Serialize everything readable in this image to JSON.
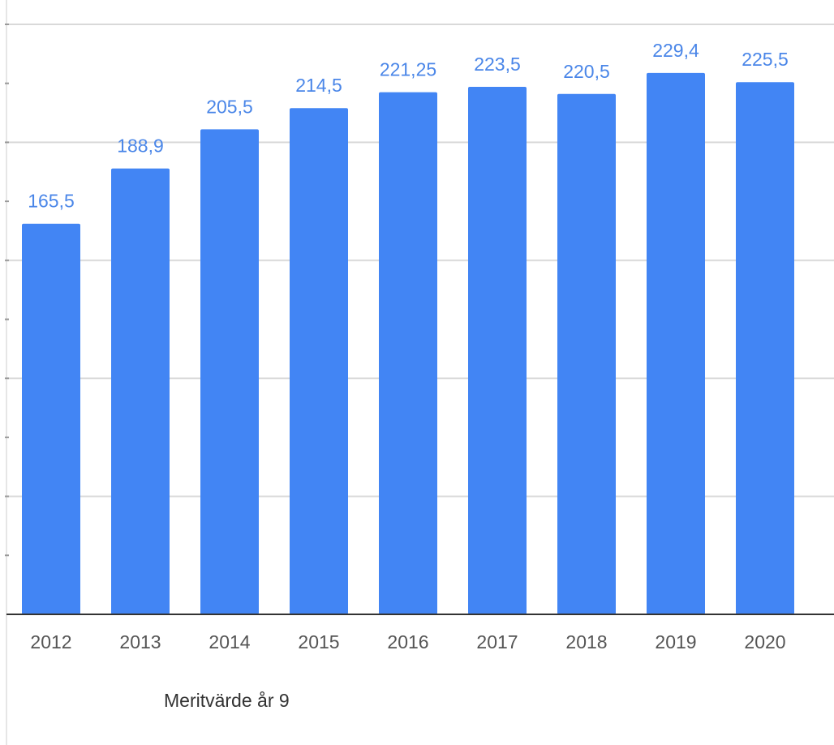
{
  "chart_data": {
    "type": "bar",
    "categories": [
      "2012",
      "2013",
      "2014",
      "2015",
      "2016",
      "2017",
      "2018",
      "2019",
      "2020"
    ],
    "series": [
      {
        "name": "Meritvärde år 9",
        "values": [
          165.5,
          188.9,
          205.5,
          214.5,
          221.25,
          223.5,
          220.5,
          229.4,
          225.5
        ],
        "labels": [
          "165,5",
          "188,9",
          "205,5",
          "214,5",
          "221,25",
          "223,5",
          "220,5",
          "229,4",
          "225,5"
        ]
      }
    ],
    "ylim": [
      0,
      250
    ],
    "grid": true,
    "legend_position": "bottom",
    "colors": {
      "bar": "#4285f4",
      "data_label": "#4a86e8",
      "gridline": "#d9d9d9",
      "baseline": "#333333",
      "tick_label": "#555555"
    }
  }
}
